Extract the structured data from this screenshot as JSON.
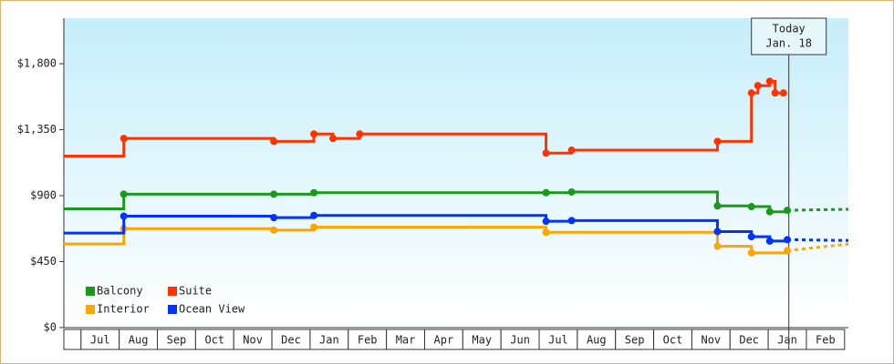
{
  "chart_data": {
    "type": "line",
    "step": "post",
    "categories": [
      "Jul",
      "Aug",
      "Sep",
      "Oct",
      "Nov",
      "Dec",
      "Jan",
      "Feb",
      "Mar",
      "Apr",
      "May",
      "Jun",
      "Jul",
      "Aug",
      "Sep",
      "Oct",
      "Nov",
      "Dec",
      "Jan",
      "Feb"
    ],
    "xlim": [
      -0.45,
      20.1
    ],
    "ylim": [
      0,
      2110
    ],
    "yticks": [
      {
        "value": 0,
        "label": "$0"
      },
      {
        "value": 450,
        "label": "$450"
      },
      {
        "value": 900,
        "label": "$900"
      },
      {
        "value": 1350,
        "label": "$1,350"
      },
      {
        "value": 1800,
        "label": "$1,800"
      }
    ],
    "series": [
      {
        "name": "Balcony",
        "color": "#1a9a1a",
        "x": [
          -0.45,
          1.12,
          5.05,
          6.1,
          12.18,
          12.85,
          16.67,
          17.56,
          18.04,
          18.5
        ],
        "values": [
          810,
          910,
          910,
          920,
          920,
          925,
          830,
          825,
          790,
          800
        ],
        "projection": {
          "x": [
            18.5,
            20.1
          ],
          "values": [
            800,
            807
          ]
        }
      },
      {
        "name": "Suite",
        "color": "#ff3300",
        "x": [
          -0.45,
          1.12,
          5.05,
          6.1,
          6.6,
          7.3,
          12.18,
          12.85,
          16.67,
          17.56,
          17.73,
          18.04,
          18.18,
          18.4
        ],
        "values": [
          1170,
          1290,
          1270,
          1320,
          1290,
          1320,
          1190,
          1210,
          1270,
          1600,
          1650,
          1680,
          1600,
          1600
        ]
      },
      {
        "name": "Interior",
        "color": "#ffa500",
        "x": [
          -0.45,
          1.12,
          5.05,
          6.1,
          12.18,
          16.67,
          17.56,
          18.5
        ],
        "values": [
          570,
          675,
          665,
          685,
          650,
          555,
          510,
          525
        ],
        "projection": {
          "x": [
            18.5,
            20.1
          ],
          "values": [
            525,
            570
          ]
        }
      },
      {
        "name": "Ocean View",
        "color": "#0033ff",
        "x": [
          -0.45,
          1.12,
          5.05,
          6.1,
          12.18,
          12.85,
          16.67,
          17.56,
          18.04,
          18.5
        ],
        "values": [
          645,
          760,
          750,
          765,
          725,
          730,
          655,
          620,
          590,
          600
        ],
        "projection": {
          "x": [
            18.5,
            20.1
          ],
          "values": [
            600,
            594
          ]
        }
      }
    ],
    "annotation": {
      "x": 18.54,
      "lines": [
        "Today",
        "Jan. 18"
      ]
    },
    "legend": "lower left"
  }
}
